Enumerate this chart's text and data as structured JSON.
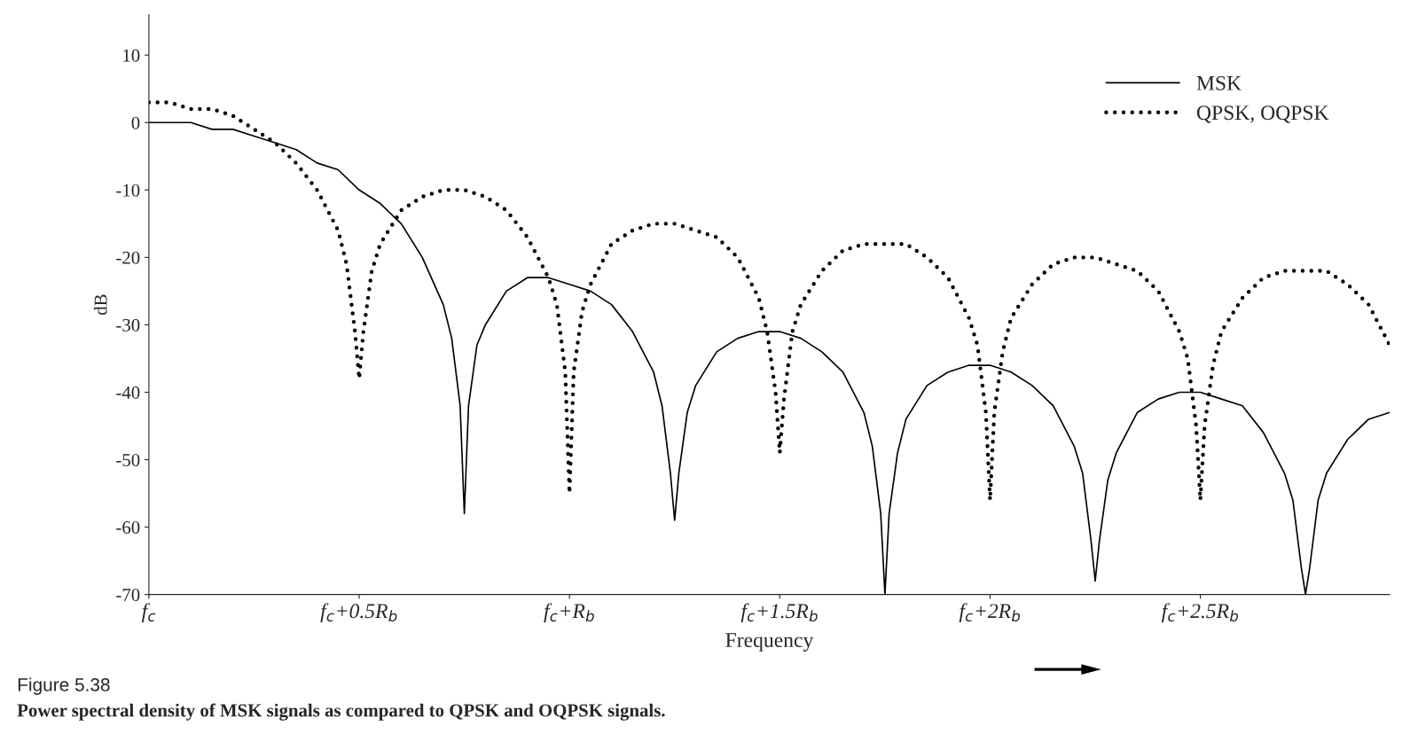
{
  "chart_data": {
    "type": "line",
    "ylabel": "dB",
    "xlabel": "Frequency",
    "xlim": [
      0,
      2.95
    ],
    "ylim": [
      -70,
      16
    ],
    "xticks": [
      {
        "value": 0,
        "label": "f$_{c}$"
      },
      {
        "value": 0.5,
        "label": "f$_{c}$+0.5R$_{b}$"
      },
      {
        "value": 1,
        "label": "f$_{c}$+R$_{b}$"
      },
      {
        "value": 1.5,
        "label": "f$_{c}$+1.5R$_{b}$"
      },
      {
        "value": 2,
        "label": "f$_{c}$+2R$_{b}$"
      },
      {
        "value": 2.5,
        "label": "f$_{c}$+2.5R$_{b}$"
      }
    ],
    "yticks": [
      10,
      0,
      -10,
      -20,
      -30,
      -40,
      -50,
      -60,
      -70
    ],
    "grid": false,
    "legend": "top right",
    "annotations": [
      "Figure 5.38",
      "Power spectral density of MSK signals as compared to QPSK and OQPSK signals."
    ],
    "series": [
      {
        "name": "MSK",
        "color": "#000000",
        "line_style": "solid",
        "x": [
          0,
          0.05,
          0.1,
          0.15,
          0.2,
          0.25,
          0.3,
          0.35,
          0.4,
          0.45,
          0.5,
          0.55,
          0.6,
          0.65,
          0.7,
          0.72,
          0.74,
          0.75,
          0.76,
          0.78,
          0.8,
          0.85,
          0.9,
          0.95,
          1.0,
          1.05,
          1.1,
          1.15,
          1.2,
          1.22,
          1.24,
          1.25,
          1.26,
          1.28,
          1.3,
          1.35,
          1.4,
          1.45,
          1.5,
          1.55,
          1.6,
          1.65,
          1.7,
          1.72,
          1.74,
          1.75,
          1.76,
          1.78,
          1.8,
          1.85,
          1.9,
          1.95,
          2.0,
          2.05,
          2.1,
          2.15,
          2.2,
          2.22,
          2.24,
          2.25,
          2.26,
          2.28,
          2.3,
          2.35,
          2.4,
          2.45,
          2.5,
          2.55,
          2.6,
          2.65,
          2.7,
          2.72,
          2.74,
          2.75,
          2.76,
          2.78,
          2.8,
          2.85,
          2.9,
          2.95
        ],
        "values": [
          0,
          0,
          0,
          -1,
          -1,
          -2,
          -3,
          -4,
          -6,
          -7,
          -10,
          -12,
          -15,
          -20,
          -27,
          -32,
          -42,
          -58,
          -42,
          -33,
          -30,
          -25,
          -23,
          -23,
          -24,
          -25,
          -27,
          -31,
          -37,
          -42,
          -52,
          -59,
          -52,
          -43,
          -39,
          -34,
          -32,
          -31,
          -31,
          -32,
          -34,
          -37,
          -43,
          -48,
          -58,
          -70,
          -58,
          -49,
          -44,
          -39,
          -37,
          -36,
          -36,
          -37,
          -39,
          -42,
          -48,
          -52,
          -62,
          -68,
          -62,
          -53,
          -49,
          -43,
          -41,
          -40,
          -40,
          -41,
          -42,
          -46,
          -52,
          -56,
          -66,
          -70,
          -66,
          -56,
          -52,
          -47,
          -44,
          -43
        ]
      },
      {
        "name": "QPSK, OQPSK",
        "color": "#000000",
        "line_style": "dotted",
        "x": [
          0,
          0.05,
          0.1,
          0.15,
          0.2,
          0.25,
          0.3,
          0.35,
          0.4,
          0.45,
          0.47,
          0.49,
          0.5,
          0.51,
          0.53,
          0.55,
          0.6,
          0.65,
          0.7,
          0.75,
          0.8,
          0.85,
          0.9,
          0.95,
          0.97,
          0.99,
          1.0,
          1.01,
          1.03,
          1.05,
          1.1,
          1.15,
          1.2,
          1.25,
          1.3,
          1.35,
          1.4,
          1.45,
          1.47,
          1.49,
          1.5,
          1.51,
          1.53,
          1.55,
          1.6,
          1.65,
          1.7,
          1.75,
          1.8,
          1.85,
          1.9,
          1.95,
          1.97,
          1.99,
          2.0,
          2.01,
          2.03,
          2.05,
          2.1,
          2.15,
          2.2,
          2.25,
          2.3,
          2.35,
          2.4,
          2.45,
          2.47,
          2.49,
          2.5,
          2.51,
          2.53,
          2.55,
          2.6,
          2.65,
          2.7,
          2.75,
          2.8,
          2.85,
          2.9,
          2.95
        ],
        "values": [
          3,
          3,
          2,
          2,
          1,
          -1,
          -3,
          -6,
          -10,
          -16,
          -21,
          -31,
          -38,
          -31,
          -22,
          -18,
          -13,
          -11,
          -10,
          -10,
          -11,
          -13,
          -17,
          -23,
          -27,
          -37,
          -55,
          -37,
          -28,
          -24,
          -18,
          -16,
          -15,
          -15,
          -16,
          -17,
          -20,
          -26,
          -31,
          -40,
          -49,
          -41,
          -31,
          -27,
          -22,
          -19,
          -18,
          -18,
          -18,
          -20,
          -23,
          -29,
          -33,
          -43,
          -56,
          -43,
          -34,
          -29,
          -24,
          -21,
          -20,
          -20,
          -21,
          -22,
          -25,
          -31,
          -35,
          -45,
          -56,
          -45,
          -36,
          -31,
          -26,
          -23,
          -22,
          -22,
          -22,
          -24,
          -27,
          -33
        ]
      }
    ]
  }
}
